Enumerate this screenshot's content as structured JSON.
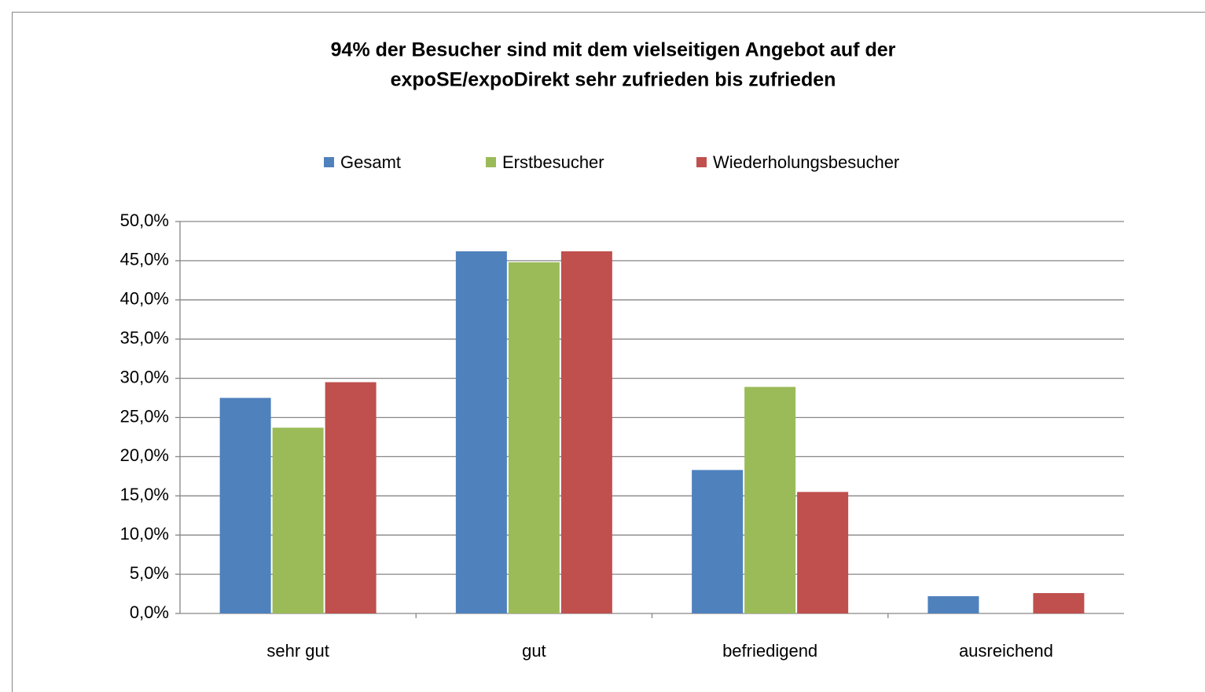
{
  "chart_data": {
    "type": "bar",
    "title": [
      "94% der Besucher sind mit dem vielseitigen Angebot auf der",
      "expoSE/expoDirekt sehr zufrieden bis zufrieden"
    ],
    "categories": [
      "sehr gut",
      "gut",
      "befriedigend",
      "ausreichend"
    ],
    "series": [
      {
        "name": "Gesamt",
        "color": "#4f81bd",
        "values": [
          27.5,
          46.2,
          18.3,
          2.2
        ]
      },
      {
        "name": "Erstbesucher",
        "color": "#9bbb59",
        "values": [
          23.7,
          44.8,
          28.9,
          0
        ]
      },
      {
        "name": "Wiederholungsbesucher",
        "color": "#c0504d",
        "values": [
          29.5,
          46.2,
          15.5,
          2.6
        ]
      }
    ],
    "ylim": [
      0,
      50
    ],
    "yticks": [
      {
        "value": 0,
        "label": "0,0%"
      },
      {
        "value": 5,
        "label": "5,0%"
      },
      {
        "value": 10,
        "label": "10,0%"
      },
      {
        "value": 15,
        "label": "15,0%"
      },
      {
        "value": 20,
        "label": "20,0%"
      },
      {
        "value": 25,
        "label": "25,0%"
      },
      {
        "value": 30,
        "label": "30,0%"
      },
      {
        "value": 35,
        "label": "35,0%"
      },
      {
        "value": 40,
        "label": "40,0%"
      },
      {
        "value": 45,
        "label": "45,0%"
      },
      {
        "value": 50,
        "label": "50,0%"
      }
    ],
    "grid": true,
    "legend": "top"
  }
}
